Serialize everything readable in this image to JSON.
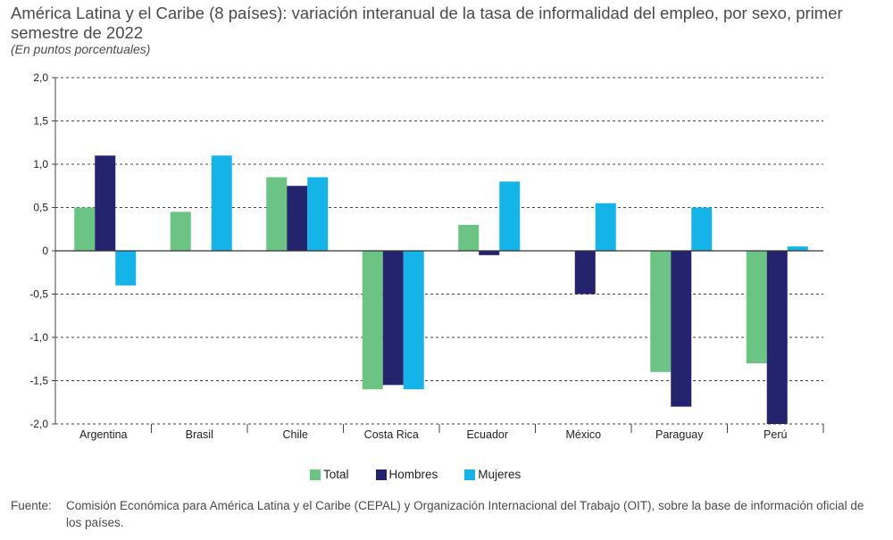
{
  "title": "América Latina y el Caribe (8 países): variación interanual de la tasa de informalidad del empleo, por sexo, primer semestre de 2022",
  "subtitle": "(En puntos porcentuales)",
  "chart_data": {
    "type": "bar",
    "categories": [
      "Argentina",
      "Brasil",
      "Chile",
      "Costa Rica",
      "Ecuador",
      "México",
      "Paraguay",
      "Perú"
    ],
    "series": [
      {
        "name": "Total",
        "color": "#6cc484",
        "values": [
          0.5,
          0.45,
          0.85,
          -1.6,
          0.3,
          null,
          -1.4,
          -1.3
        ]
      },
      {
        "name": "Hombres",
        "color": "#23236e",
        "values": [
          1.1,
          null,
          0.75,
          -1.55,
          -0.05,
          -0.5,
          -1.8,
          -2.0
        ]
      },
      {
        "name": "Mujeres",
        "color": "#14b4e8",
        "values": [
          -0.4,
          1.1,
          0.85,
          -1.6,
          0.8,
          0.55,
          0.5,
          0.05
        ]
      }
    ],
    "yticks": [
      "2,0",
      "1,5",
      "1,0",
      "0,5",
      "0",
      "-0,5",
      "-1,0",
      "-1,5",
      "-2,0"
    ],
    "ylim": [
      -2.0,
      2.0
    ],
    "grid": "horizontal dashed",
    "legend_position": "bottom"
  },
  "source": {
    "label": "Fuente:",
    "text": "Comisión Económica para América Latina y el Caribe (CEPAL) y Organización Internacional del Trabajo (OIT), sobre la base de información oficial de los países."
  }
}
